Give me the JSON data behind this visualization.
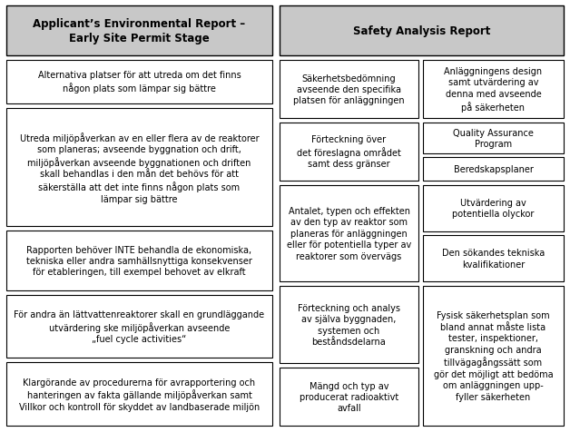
{
  "title_left": "Applicant’s Environmental Report –\nEarly Site Permit Stage",
  "title_right": "Safety Analysis Report",
  "header_bg": "#c8c8c8",
  "box_bg": "#ffffff",
  "border_color": "#000000",
  "text_color": "#000000",
  "left_boxes": [
    "Alternativa platser för att utreda om det finns\nnågon plats som lämpar sig bättre",
    "Utreda miljöpåverkan av en eller flera av de reaktorer\nsom planeras; avseende byggnation och drift,\nmiljöpåverkan avseende byggnationen och driften\nskall behandlas i den mån det behövs för att\nsäkerställa att det inte finns någon plats som\nlämpar sig bättre",
    "Rapporten behöver INTE behandla de ekonomiska,\ntekniska eller andra samhällsnyttiga konsekvenser\nför etableringen, till exempel behovet av elkraft",
    "För andra än lättvattenreaktorer skall en grundläggande\nutvärdering ske miljöpåverkan avseende\n„fuel cycle activities“",
    "Klargörande av procedurerna för avrapportering och\nhanteringen av fakta gällande miljöpåverkan samt\nVillkor och kontroll för skyddet av landbaserade miljön"
  ],
  "mid_boxes": [
    "Säkerhetsbedömning\navseende den specifika\nplatsen för anläggningen",
    "Förteckning över\ndet föreslagna området\nsamt dess gränser",
    "Antalet, typen och effekten\nav den typ av reaktor som\nplaneras för anläggningen\neller för potentiella typer av\nreaktorer som övervägs",
    "Förteckning och analys\nav själva byggnaden,\nsystemen och\nbeståndsdelarna",
    "Mängd och typ av\nproducerat radioaktivt\navfall"
  ],
  "right_boxes": [
    "Anläggningens design\nsamt utvärdering av\ndenna med avseende\npå säkerheten",
    "Quality Assurance\nProgram",
    "Beredskapsplaner",
    "Utvärdering av\npotentiella olyckor",
    "Den sökandes tekniska\nkvalifikationer",
    "Fysisk säkerhetsplan som\nbland annat måste lista\ntester, inspektioner,\ngranskning och andra\ntillvägagångssätt som\ngör det möjligt att bedöma\nom anläggningen upp-\nfyller säkerheten"
  ],
  "figsize": [
    6.28,
    4.77
  ],
  "dpi": 100
}
